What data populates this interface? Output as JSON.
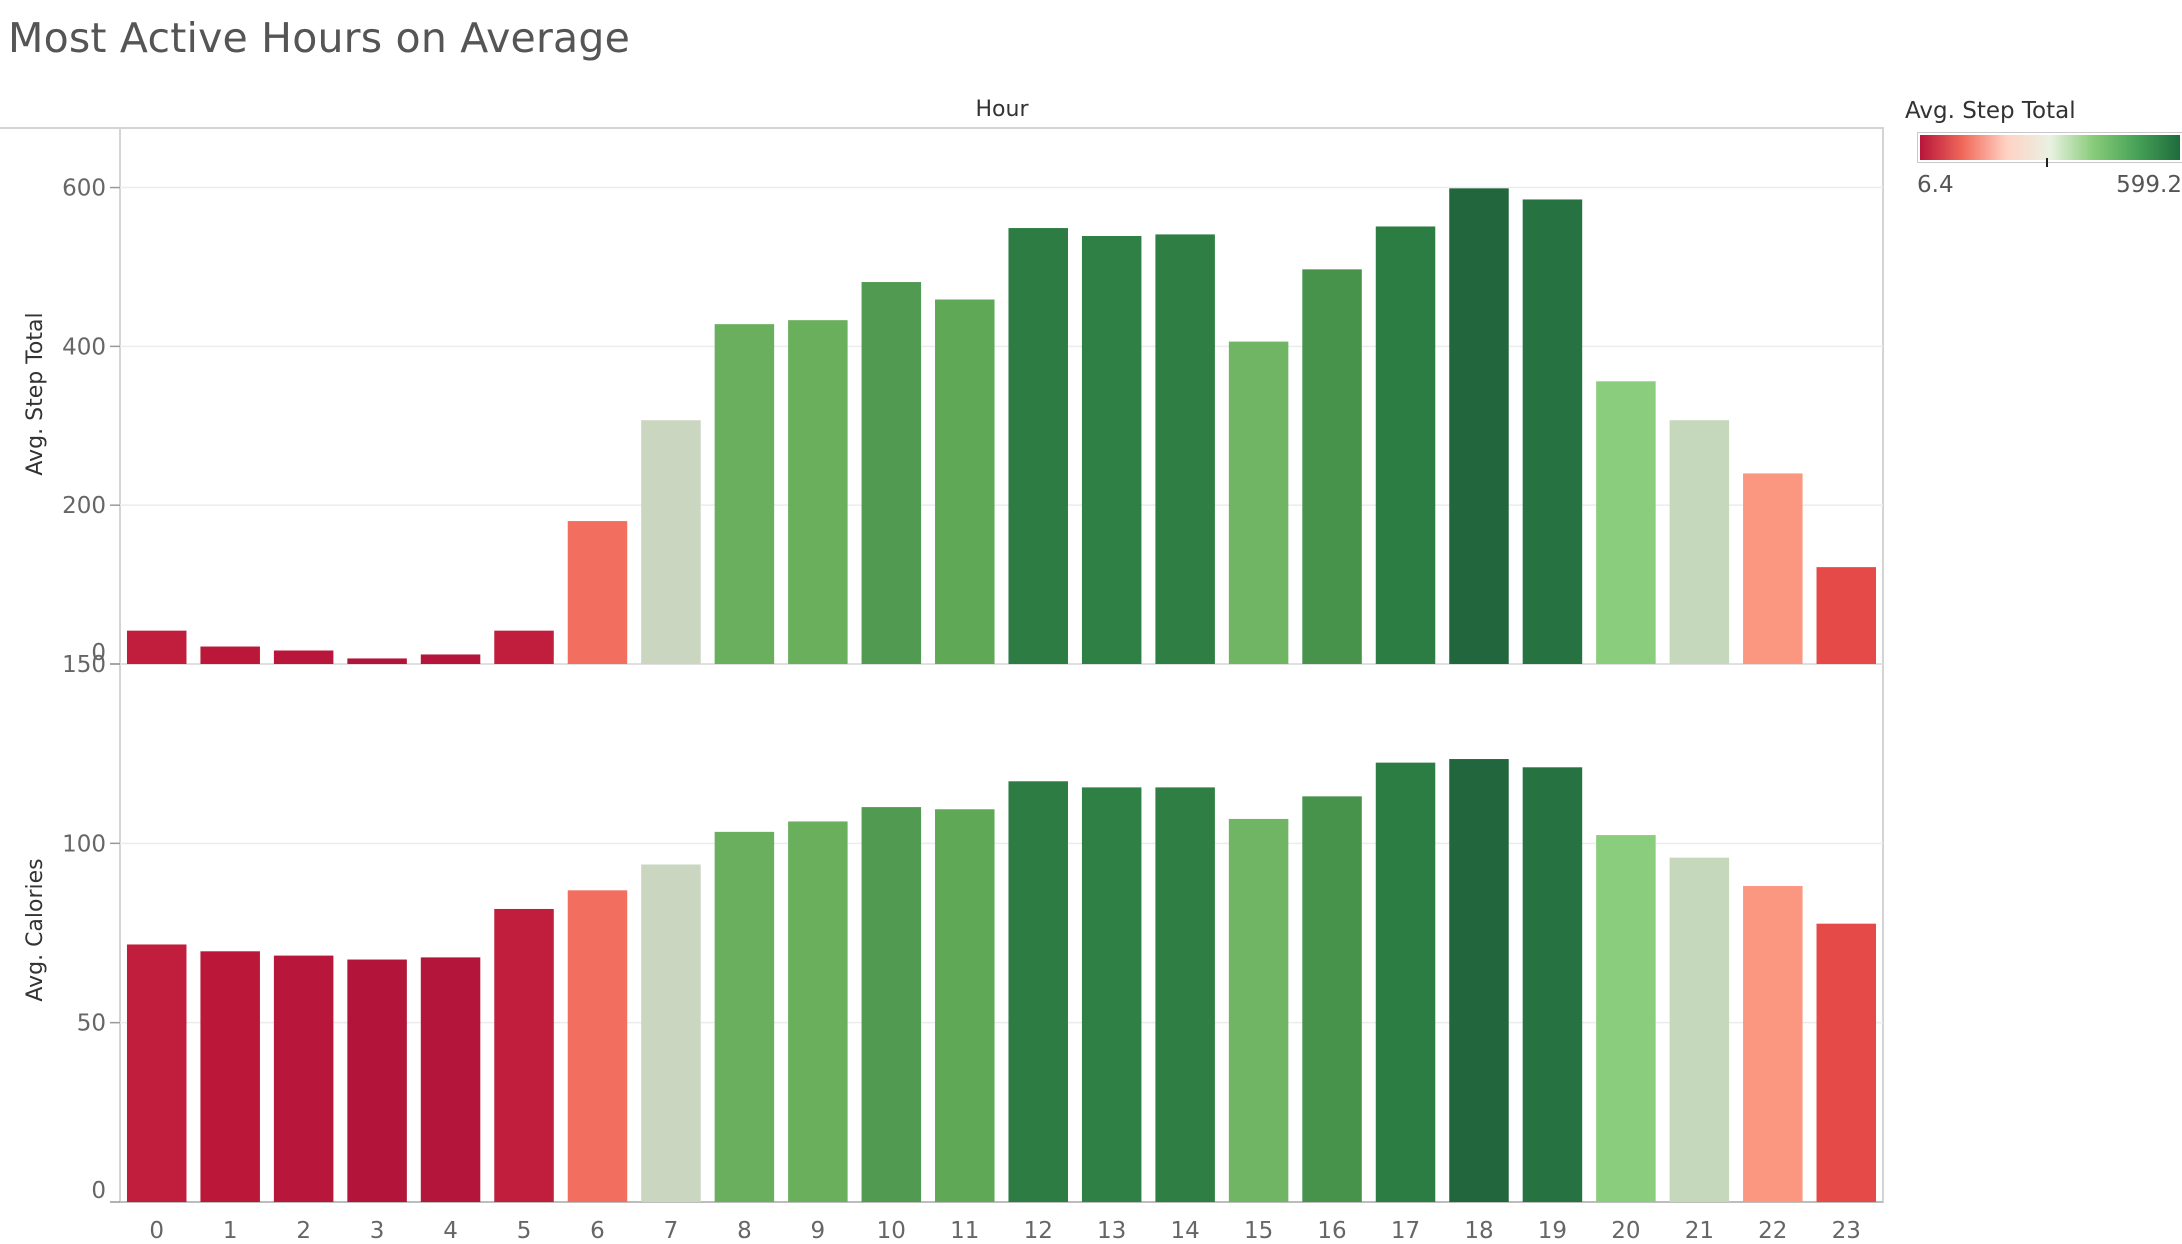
{
  "page": {
    "title": "Most Active Hours on Average"
  },
  "legend": {
    "title": "Avg. Step Total",
    "min_label": "6.4",
    "max_label": "599.2",
    "min": 6.4,
    "max": 599.2,
    "gradient_colors": [
      "#b8153a",
      "#f16a5b",
      "#ffd2c4",
      "#e9f1e2",
      "#88cc7a",
      "#48a257",
      "#1e6b3c"
    ]
  },
  "chart_data": {
    "type": "bar",
    "column_header": "Hour",
    "categories": [
      "0",
      "1",
      "2",
      "3",
      "4",
      "5",
      "6",
      "7",
      "8",
      "9",
      "10",
      "11",
      "12",
      "13",
      "14",
      "15",
      "16",
      "17",
      "18",
      "19",
      "20",
      "21",
      "22",
      "23"
    ],
    "series": [
      {
        "name": "Avg. Step Total",
        "ylabel": "Avg. Step Total",
        "ylim": [
          0,
          675
        ],
        "yticks": [
          0,
          200,
          400,
          600
        ],
        "values": [
          42,
          22,
          17,
          7,
          12,
          42,
          180,
          307,
          428,
          433,
          481,
          459,
          549,
          539,
          541,
          406,
          497,
          551,
          599,
          585,
          356,
          307,
          240,
          122
        ]
      },
      {
        "name": "Avg. Calories",
        "ylabel": "Avg. Calories",
        "ylim": [
          0,
          150
        ],
        "yticks": [
          0,
          50,
          100,
          150
        ],
        "values": [
          71.8,
          69.9,
          68.7,
          67.6,
          68.2,
          81.7,
          86.9,
          94.1,
          103.2,
          106.1,
          110.1,
          109.5,
          117.3,
          115.6,
          115.6,
          106.8,
          113.1,
          122.5,
          123.5,
          121.2,
          102.3,
          96.0,
          88.1,
          77.6
        ]
      }
    ],
    "color_by": "Avg. Step Total",
    "colors": [
      "#c11d3c",
      "#bb1839",
      "#b8163a",
      "#b2143a",
      "#b4153a",
      "#c11d3c",
      "#f26f5f",
      "#cad6bf",
      "#6aaf5d",
      "#69af5c",
      "#509a51",
      "#5ea856",
      "#2d7c44",
      "#2f8044",
      "#2f7f44",
      "#70b563",
      "#48934c",
      "#2c7d43",
      "#21663d",
      "#267240",
      "#8acd7c",
      "#c6d8bc",
      "#fb9681",
      "#e64a48"
    ],
    "grid": true,
    "legend_position": "top-right"
  }
}
